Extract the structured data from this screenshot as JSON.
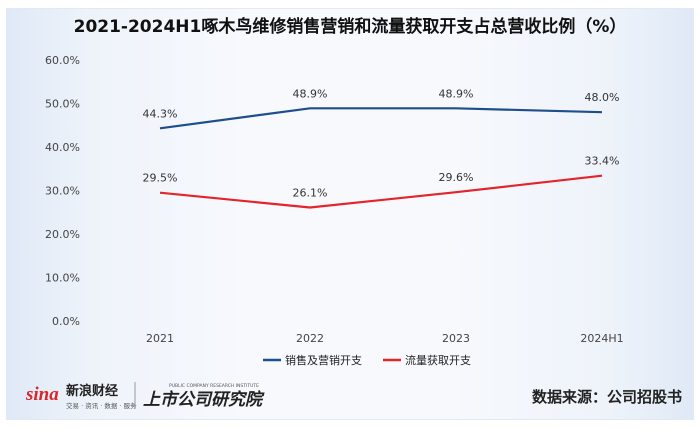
{
  "chart_data": {
    "type": "line",
    "title": "2021-2024H1啄木鸟维修销售营销和流量获取开支占总营收比例（%）",
    "categories": [
      "2021",
      "2022",
      "2023",
      "2024H1"
    ],
    "y_ticks": [
      "0.0%",
      "10.0%",
      "20.0%",
      "30.0%",
      "40.0%",
      "50.0%",
      "60.0%"
    ],
    "ylim": [
      0,
      60
    ],
    "grid": false,
    "legend_position": "bottom",
    "series": [
      {
        "name": "销售及营销开支",
        "color": "#1f4e8c",
        "values": [
          44.3,
          48.9,
          48.9,
          48.0
        ],
        "labels": [
          "44.3%",
          "48.9%",
          "48.9%",
          "48.0%"
        ]
      },
      {
        "name": "流量获取开支",
        "color": "#e3242b",
        "values": [
          29.5,
          26.1,
          29.6,
          33.4
        ],
        "labels": [
          "29.5%",
          "26.1%",
          "29.6%",
          "33.4%"
        ]
      }
    ]
  },
  "branding": {
    "sina_logo": "sina",
    "sina_name": "新浪财经",
    "sina_tagline": "交易 · 资讯 · 数据 · 服务",
    "institute_name": "上市公司研究院",
    "institute_english": "PUBLIC COMPANY RESEARCH INSTITUTE"
  },
  "source_text": "数据来源：公司招股书"
}
